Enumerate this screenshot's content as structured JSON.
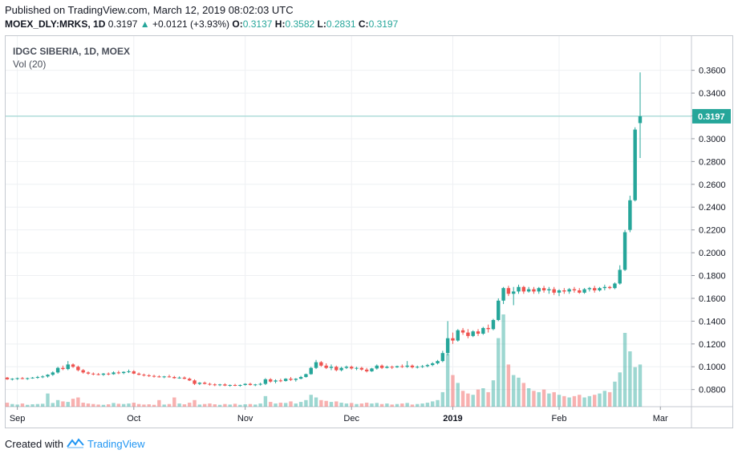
{
  "published": "Published on TradingView.com, March 12, 2019 08:02:03 UTC",
  "header": {
    "symbol": "MOEX_DLY:MRKS, 1D",
    "last": "0.3197",
    "change": "+0.0121 (+3.93%)",
    "o_label": "O:",
    "o": "0.3137",
    "h_label": "H:",
    "h": "0.3582",
    "l_label": "L:",
    "l": "0.2831",
    "c_label": "C:",
    "c": "0.3197"
  },
  "legend": {
    "title": "IDGC SIBERIA, 1D, MOEX",
    "volume": "Vol (20)"
  },
  "footer": {
    "created_with": "Created with",
    "brand": "TradingView"
  },
  "colors": {
    "up": "#26a69a",
    "down": "#ef5350",
    "grid": "#eef0f3",
    "last_line": "#8fd1cc",
    "price_tag": "#26a69a"
  },
  "chart_data": {
    "type": "candlestick",
    "title": "IDGC SIBERIA, 1D, MOEX",
    "y_axis": {
      "ticks": [
        0.08,
        0.1,
        0.12,
        0.14,
        0.16,
        0.18,
        0.2,
        0.22,
        0.24,
        0.26,
        0.28,
        0.3,
        0.32,
        0.34,
        0.36
      ],
      "tick_labels": [
        "0.0800",
        "0.1000",
        "0.1200",
        "0.1400",
        "0.1600",
        "0.1800",
        "0.2000",
        "0.2200",
        "0.2400",
        "0.2600",
        "0.2800",
        "0.3000",
        "0.3200",
        "0.3400",
        "0.3600"
      ],
      "range": [
        0.065,
        0.39
      ]
    },
    "x_axis": {
      "labels": [
        "Sep",
        "Oct",
        "Nov",
        "Dec",
        "2019",
        "Feb",
        "Mar"
      ],
      "label_bars": [
        2,
        25,
        47,
        68,
        88,
        109,
        129
      ]
    },
    "last_price": 0.3197,
    "last_price_label": "0.3197",
    "volume_indicator": "Vol (20)",
    "ohlcv": [
      [
        0.0905,
        0.091,
        0.0885,
        0.089,
        15
      ],
      [
        0.089,
        0.09,
        0.088,
        0.0895,
        10
      ],
      [
        0.0895,
        0.0905,
        0.0885,
        0.09,
        8
      ],
      [
        0.09,
        0.091,
        0.089,
        0.0895,
        12
      ],
      [
        0.0895,
        0.0905,
        0.0885,
        0.09,
        7
      ],
      [
        0.09,
        0.091,
        0.0895,
        0.0905,
        9
      ],
      [
        0.0905,
        0.092,
        0.0895,
        0.091,
        10
      ],
      [
        0.091,
        0.0925,
        0.09,
        0.0915,
        11
      ],
      [
        0.0915,
        0.0935,
        0.0905,
        0.093,
        50
      ],
      [
        0.093,
        0.096,
        0.092,
        0.095,
        14
      ],
      [
        0.095,
        0.1,
        0.094,
        0.099,
        25
      ],
      [
        0.099,
        0.101,
        0.097,
        0.098,
        20
      ],
      [
        0.098,
        0.105,
        0.097,
        0.102,
        18
      ],
      [
        0.102,
        0.103,
        0.099,
        0.1,
        30
      ],
      [
        0.1,
        0.101,
        0.096,
        0.097,
        35
      ],
      [
        0.097,
        0.098,
        0.094,
        0.095,
        15
      ],
      [
        0.095,
        0.096,
        0.093,
        0.094,
        12
      ],
      [
        0.094,
        0.095,
        0.0925,
        0.0935,
        10
      ],
      [
        0.0935,
        0.0945,
        0.0925,
        0.093,
        8
      ],
      [
        0.093,
        0.0945,
        0.092,
        0.094,
        7
      ],
      [
        0.094,
        0.095,
        0.0925,
        0.0935,
        9
      ],
      [
        0.0935,
        0.096,
        0.093,
        0.095,
        14
      ],
      [
        0.095,
        0.0965,
        0.0935,
        0.0945,
        11
      ],
      [
        0.0945,
        0.096,
        0.0935,
        0.0955,
        10
      ],
      [
        0.0955,
        0.0975,
        0.0945,
        0.096,
        12
      ],
      [
        0.096,
        0.097,
        0.0935,
        0.094,
        15
      ],
      [
        0.094,
        0.095,
        0.0925,
        0.093,
        10
      ],
      [
        0.093,
        0.094,
        0.0915,
        0.0925,
        8
      ],
      [
        0.0925,
        0.0935,
        0.091,
        0.092,
        9
      ],
      [
        0.092,
        0.093,
        0.0905,
        0.0915,
        7
      ],
      [
        0.0915,
        0.0925,
        0.0905,
        0.091,
        25
      ],
      [
        0.091,
        0.092,
        0.09,
        0.0915,
        8
      ],
      [
        0.0915,
        0.093,
        0.0905,
        0.091,
        10
      ],
      [
        0.091,
        0.092,
        0.0895,
        0.09,
        35
      ],
      [
        0.09,
        0.0915,
        0.0895,
        0.0905,
        12
      ],
      [
        0.0905,
        0.0915,
        0.089,
        0.0895,
        9
      ],
      [
        0.0895,
        0.0905,
        0.0875,
        0.088,
        15
      ],
      [
        0.088,
        0.089,
        0.084,
        0.085,
        25
      ],
      [
        0.085,
        0.0865,
        0.084,
        0.086,
        8
      ],
      [
        0.086,
        0.087,
        0.0845,
        0.085,
        10
      ],
      [
        0.085,
        0.086,
        0.0835,
        0.0845,
        12
      ],
      [
        0.0845,
        0.0855,
        0.083,
        0.084,
        9
      ],
      [
        0.084,
        0.085,
        0.083,
        0.0845,
        7
      ],
      [
        0.0845,
        0.0855,
        0.083,
        0.0835,
        10
      ],
      [
        0.0835,
        0.0845,
        0.0825,
        0.084,
        8
      ],
      [
        0.084,
        0.085,
        0.083,
        0.0835,
        11
      ],
      [
        0.0835,
        0.0845,
        0.0825,
        0.084,
        7
      ],
      [
        0.084,
        0.0855,
        0.0835,
        0.085,
        9
      ],
      [
        0.085,
        0.086,
        0.0835,
        0.084,
        10
      ],
      [
        0.084,
        0.085,
        0.083,
        0.0845,
        8
      ],
      [
        0.0845,
        0.086,
        0.0835,
        0.085,
        12
      ],
      [
        0.085,
        0.09,
        0.084,
        0.089,
        40
      ],
      [
        0.089,
        0.09,
        0.086,
        0.087,
        18
      ],
      [
        0.087,
        0.089,
        0.0855,
        0.088,
        12
      ],
      [
        0.088,
        0.0895,
        0.0865,
        0.0875,
        15
      ],
      [
        0.0875,
        0.09,
        0.087,
        0.0895,
        14
      ],
      [
        0.0895,
        0.091,
        0.0875,
        0.0885,
        20
      ],
      [
        0.0885,
        0.09,
        0.087,
        0.0895,
        12
      ],
      [
        0.0895,
        0.092,
        0.089,
        0.091,
        18
      ],
      [
        0.091,
        0.094,
        0.0905,
        0.0935,
        25
      ],
      [
        0.0935,
        0.1,
        0.093,
        0.099,
        45
      ],
      [
        0.099,
        0.106,
        0.098,
        0.104,
        35
      ],
      [
        0.104,
        0.105,
        0.1,
        0.101,
        25
      ],
      [
        0.101,
        0.103,
        0.098,
        0.099,
        22
      ],
      [
        0.099,
        0.102,
        0.097,
        0.1,
        18
      ],
      [
        0.1,
        0.101,
        0.096,
        0.097,
        20
      ],
      [
        0.097,
        0.1,
        0.096,
        0.099,
        15
      ],
      [
        0.099,
        0.101,
        0.098,
        0.1,
        12
      ],
      [
        0.1,
        0.101,
        0.0975,
        0.0985,
        14
      ],
      [
        0.0985,
        0.1,
        0.097,
        0.099,
        10
      ],
      [
        0.099,
        0.1,
        0.0965,
        0.0975,
        12
      ],
      [
        0.0975,
        0.099,
        0.095,
        0.096,
        15
      ],
      [
        0.096,
        0.099,
        0.0955,
        0.0985,
        12
      ],
      [
        0.0985,
        0.102,
        0.0975,
        0.101,
        14
      ],
      [
        0.101,
        0.102,
        0.098,
        0.099,
        10
      ],
      [
        0.099,
        0.101,
        0.0985,
        0.1,
        12
      ],
      [
        0.1,
        0.101,
        0.098,
        0.0995,
        8
      ],
      [
        0.0995,
        0.101,
        0.099,
        0.1005,
        10
      ],
      [
        0.1005,
        0.102,
        0.099,
        0.1,
        12
      ],
      [
        0.1,
        0.105,
        0.099,
        0.101,
        14
      ],
      [
        0.101,
        0.102,
        0.0985,
        0.0995,
        8
      ],
      [
        0.0995,
        0.101,
        0.0985,
        0.1,
        10
      ],
      [
        0.1,
        0.1015,
        0.099,
        0.1005,
        12
      ],
      [
        0.1005,
        0.1025,
        0.0995,
        0.1015,
        15
      ],
      [
        0.1015,
        0.104,
        0.1005,
        0.103,
        20
      ],
      [
        0.103,
        0.106,
        0.102,
        0.105,
        25
      ],
      [
        0.105,
        0.114,
        0.104,
        0.112,
        55
      ],
      [
        0.112,
        0.14,
        0.11,
        0.125,
        200
      ],
      [
        0.125,
        0.13,
        0.12,
        0.123,
        120
      ],
      [
        0.123,
        0.133,
        0.122,
        0.132,
        90
      ],
      [
        0.132,
        0.134,
        0.128,
        0.13,
        60
      ],
      [
        0.13,
        0.133,
        0.125,
        0.127,
        50
      ],
      [
        0.127,
        0.132,
        0.126,
        0.131,
        45
      ],
      [
        0.131,
        0.133,
        0.127,
        0.129,
        65
      ],
      [
        0.129,
        0.135,
        0.128,
        0.134,
        70
      ],
      [
        0.134,
        0.137,
        0.13,
        0.133,
        55
      ],
      [
        0.133,
        0.142,
        0.132,
        0.141,
        100
      ],
      [
        0.141,
        0.16,
        0.14,
        0.158,
        260
      ],
      [
        0.158,
        0.17,
        0.155,
        0.169,
        350
      ],
      [
        0.169,
        0.171,
        0.162,
        0.164,
        160
      ],
      [
        0.164,
        0.17,
        0.154,
        0.166,
        120
      ],
      [
        0.166,
        0.172,
        0.164,
        0.17,
        110
      ],
      [
        0.17,
        0.171,
        0.164,
        0.166,
        90
      ],
      [
        0.166,
        0.17,
        0.165,
        0.168,
        70
      ],
      [
        0.168,
        0.17,
        0.164,
        0.166,
        60
      ],
      [
        0.166,
        0.17,
        0.164,
        0.169,
        55
      ],
      [
        0.169,
        0.171,
        0.165,
        0.167,
        65
      ],
      [
        0.167,
        0.17,
        0.164,
        0.168,
        50
      ],
      [
        0.168,
        0.17,
        0.163,
        0.165,
        55
      ],
      [
        0.165,
        0.168,
        0.162,
        0.167,
        45
      ],
      [
        0.167,
        0.169,
        0.164,
        0.166,
        40
      ],
      [
        0.166,
        0.169,
        0.164,
        0.168,
        35
      ],
      [
        0.168,
        0.17,
        0.165,
        0.167,
        40
      ],
      [
        0.167,
        0.169,
        0.164,
        0.165,
        45
      ],
      [
        0.165,
        0.169,
        0.164,
        0.168,
        35
      ],
      [
        0.168,
        0.17,
        0.166,
        0.169,
        40
      ],
      [
        0.169,
        0.171,
        0.165,
        0.167,
        45
      ],
      [
        0.167,
        0.17,
        0.166,
        0.169,
        50
      ],
      [
        0.169,
        0.172,
        0.167,
        0.17,
        60
      ],
      [
        0.17,
        0.171,
        0.168,
        0.169,
        55
      ],
      [
        0.169,
        0.174,
        0.168,
        0.173,
        95
      ],
      [
        0.173,
        0.189,
        0.172,
        0.185,
        130
      ],
      [
        0.185,
        0.22,
        0.184,
        0.218,
        280
      ],
      [
        0.22,
        0.25,
        0.218,
        0.246,
        210
      ],
      [
        0.246,
        0.31,
        0.245,
        0.308,
        150
      ],
      [
        0.3137,
        0.3582,
        0.2831,
        0.3197,
        160
      ]
    ]
  }
}
